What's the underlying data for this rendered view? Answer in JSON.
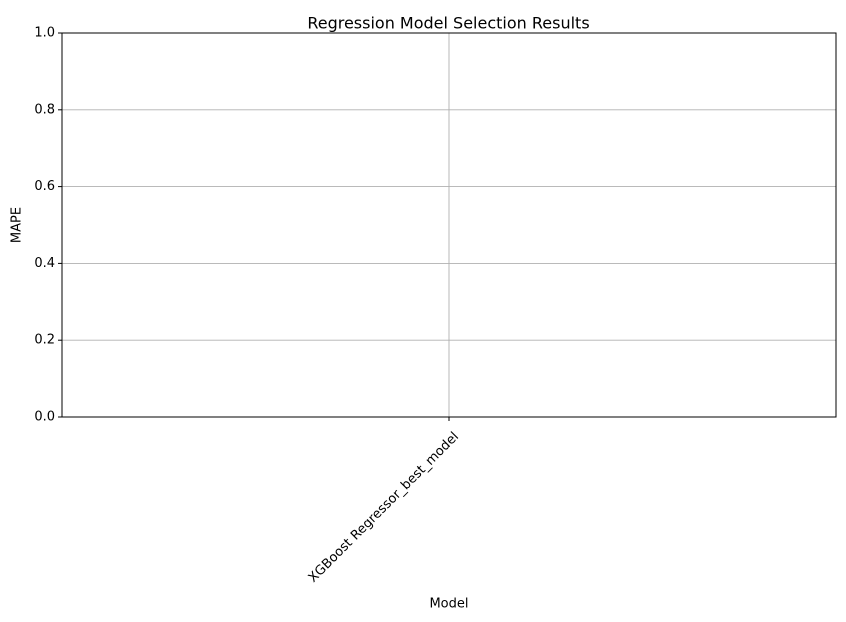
{
  "chart_data": {
    "type": "bar",
    "title": "Regression Model Selection Results",
    "xlabel": "Model",
    "ylabel": "MAPE",
    "categories": [
      "XGBoost Regressor_best_model"
    ],
    "values": [
      0.0
    ],
    "ylim": [
      0,
      1
    ],
    "yticks": [
      0.0,
      0.2,
      0.4,
      0.6,
      0.8,
      1.0
    ],
    "ytick_labels": [
      "0.0",
      "0.2",
      "0.4",
      "0.6",
      "0.8",
      "1.0"
    ],
    "grid": true,
    "legend": "none",
    "colors": {
      "bar": "#1f77b4",
      "grid": "#b0b0b0",
      "axis": "#000000"
    }
  }
}
